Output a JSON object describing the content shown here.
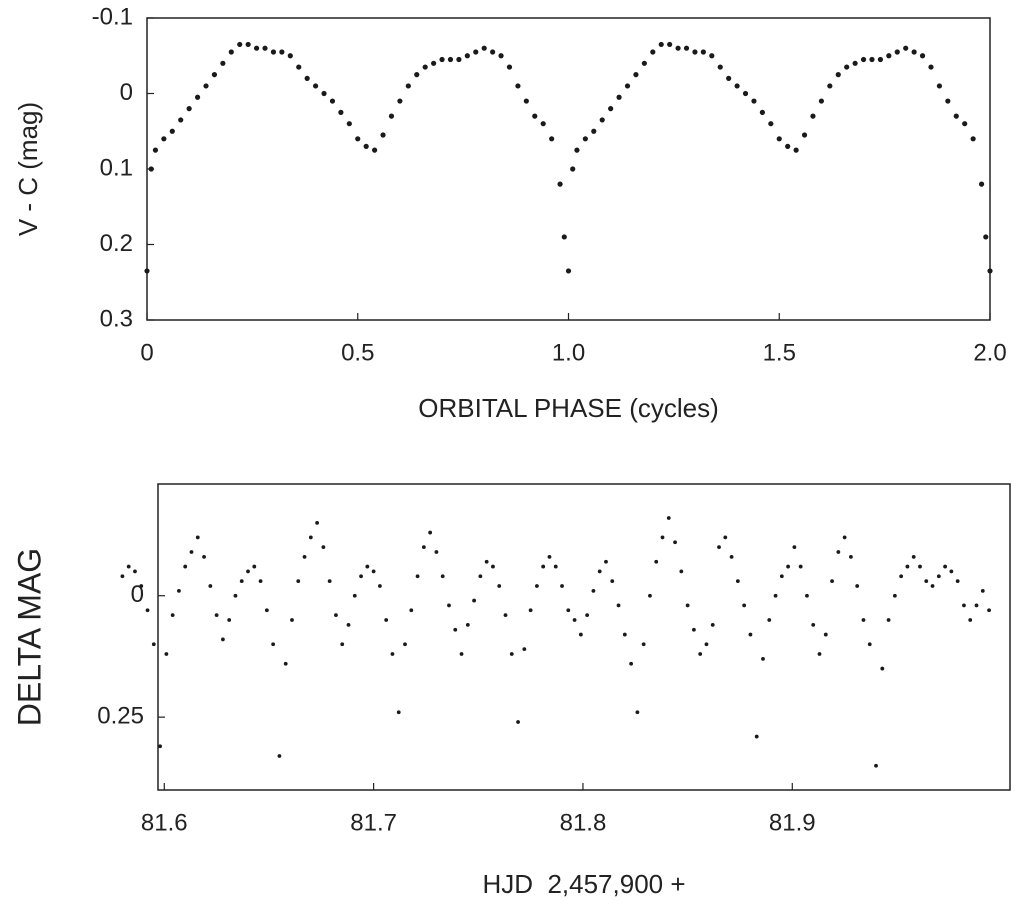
{
  "chart_data": [
    {
      "type": "scatter",
      "xlabel": "ORBITAL PHASE (cycles)",
      "ylabel": "V - C (mag)",
      "color": "#1a1a1a",
      "y_inverted": true,
      "xlim": [
        0,
        2
      ],
      "xticks": [
        0,
        0.5,
        {
          "value": 1,
          "label": "1.0"
        },
        1.5,
        {
          "value": 2,
          "label": "2.0"
        }
      ],
      "ylim": [
        -0.1,
        0.3
      ],
      "yticks": [
        -0.1,
        0,
        0.1,
        0.2,
        0.3
      ],
      "x": [
        0,
        0.01,
        0.02,
        0.04,
        0.06,
        0.08,
        0.1,
        0.12,
        0.14,
        0.16,
        0.18,
        0.2,
        0.22,
        0.24,
        0.26,
        0.28,
        0.3,
        0.32,
        0.34,
        0.36,
        0.38,
        0.4,
        0.42,
        0.44,
        0.46,
        0.48,
        0.5,
        0.52,
        0.54,
        0.56,
        0.58,
        0.6,
        0.62,
        0.64,
        0.66,
        0.68,
        0.7,
        0.72,
        0.74,
        0.76,
        0.78,
        0.8,
        0.82,
        0.84,
        0.86,
        0.88,
        0.9,
        0.92,
        0.94,
        0.96,
        0.98,
        0.99,
        1,
        1.01,
        1.02,
        1.04,
        1.06,
        1.08,
        1.1,
        1.12,
        1.14,
        1.16,
        1.18,
        1.2,
        1.22,
        1.24,
        1.26,
        1.28,
        1.3,
        1.32,
        1.34,
        1.36,
        1.38,
        1.4,
        1.42,
        1.44,
        1.46,
        1.48,
        1.5,
        1.52,
        1.54,
        1.56,
        1.58,
        1.6,
        1.62,
        1.64,
        1.66,
        1.68,
        1.7,
        1.72,
        1.74,
        1.76,
        1.78,
        1.8,
        1.82,
        1.84,
        1.86,
        1.88,
        1.9,
        1.92,
        1.94,
        1.96,
        1.98,
        1.99,
        2
      ],
      "values": [
        0.235,
        0.1,
        0.075,
        0.06,
        0.05,
        0.035,
        0.02,
        0.005,
        -0.01,
        -0.025,
        -0.04,
        -0.055,
        -0.065,
        -0.065,
        -0.06,
        -0.06,
        -0.055,
        -0.055,
        -0.05,
        -0.035,
        -0.02,
        -0.01,
        0,
        0.01,
        0.025,
        0.04,
        0.06,
        0.07,
        0.075,
        0.055,
        0.03,
        0.01,
        -0.01,
        -0.025,
        -0.035,
        -0.04,
        -0.045,
        -0.045,
        -0.045,
        -0.05,
        -0.055,
        -0.06,
        -0.055,
        -0.05,
        -0.035,
        -0.01,
        0.01,
        0.03,
        0.04,
        0.06,
        0.12,
        0.19,
        0.235,
        0.1,
        0.075,
        0.06,
        0.05,
        0.035,
        0.02,
        0.005,
        -0.01,
        -0.025,
        -0.04,
        -0.055,
        -0.065,
        -0.065,
        -0.06,
        -0.06,
        -0.055,
        -0.055,
        -0.05,
        -0.035,
        -0.02,
        -0.01,
        0,
        0.01,
        0.025,
        0.04,
        0.06,
        0.07,
        0.075,
        0.055,
        0.03,
        0.01,
        -0.01,
        -0.025,
        -0.035,
        -0.04,
        -0.045,
        -0.045,
        -0.045,
        -0.05,
        -0.055,
        -0.06,
        -0.055,
        -0.05,
        -0.035,
        -0.01,
        0.01,
        0.03,
        0.04,
        0.06,
        0.12,
        0.19,
        0.235
      ]
    },
    {
      "type": "scatter",
      "xlabel": "HJD  2,457,900 +",
      "ylabel": "DELTA MAG",
      "color": "#1a1a1a",
      "y_inverted": true,
      "xlim": [
        81.597,
        82.004
      ],
      "xticks": [
        81.6,
        81.7,
        81.8,
        81.9
      ],
      "ylim": [
        -0.23,
        0.4
      ],
      "yticks": [
        0,
        0.25
      ],
      "x": [
        81.58,
        81.583,
        81.586,
        81.589,
        81.592,
        81.595,
        81.598,
        81.601,
        81.604,
        81.607,
        81.61,
        81.613,
        81.616,
        81.619,
        81.622,
        81.625,
        81.628,
        81.631,
        81.634,
        81.637,
        81.64,
        81.643,
        81.646,
        81.649,
        81.652,
        81.655,
        81.658,
        81.661,
        81.664,
        81.667,
        81.67,
        81.673,
        81.676,
        81.679,
        81.682,
        81.685,
        81.688,
        81.691,
        81.694,
        81.697,
        81.7,
        81.703,
        81.706,
        81.709,
        81.712,
        81.715,
        81.718,
        81.721,
        81.724,
        81.727,
        81.73,
        81.733,
        81.736,
        81.739,
        81.742,
        81.745,
        81.748,
        81.751,
        81.754,
        81.757,
        81.76,
        81.763,
        81.766,
        81.769,
        81.772,
        81.775,
        81.778,
        81.781,
        81.784,
        81.787,
        81.79,
        81.793,
        81.796,
        81.799,
        81.802,
        81.805,
        81.808,
        81.811,
        81.814,
        81.817,
        81.82,
        81.823,
        81.826,
        81.829,
        81.832,
        81.835,
        81.838,
        81.841,
        81.844,
        81.847,
        81.85,
        81.853,
        81.856,
        81.859,
        81.862,
        81.865,
        81.868,
        81.871,
        81.874,
        81.877,
        81.88,
        81.883,
        81.886,
        81.889,
        81.892,
        81.895,
        81.898,
        81.901,
        81.904,
        81.907,
        81.91,
        81.913,
        81.916,
        81.919,
        81.922,
        81.925,
        81.928,
        81.931,
        81.934,
        81.937,
        81.94,
        81.943,
        81.946,
        81.949,
        81.952,
        81.955,
        81.958,
        81.961,
        81.964,
        81.967,
        81.97,
        81.973,
        81.976,
        81.979,
        81.982,
        81.985,
        81.988,
        81.991,
        81.994
      ],
      "values": [
        -0.04,
        -0.06,
        -0.05,
        -0.02,
        0.03,
        0.1,
        0.31,
        0.12,
        0.04,
        -0.01,
        -0.06,
        -0.09,
        -0.12,
        -0.08,
        -0.02,
        0.04,
        0.09,
        0.05,
        0,
        -0.03,
        -0.05,
        -0.06,
        -0.03,
        0.03,
        0.1,
        0.33,
        0.14,
        0.05,
        -0.03,
        -0.08,
        -0.12,
        -0.15,
        -0.1,
        -0.03,
        0.04,
        0.1,
        0.06,
        0,
        -0.04,
        -0.06,
        -0.05,
        -0.02,
        0.05,
        0.12,
        0.24,
        0.1,
        0.03,
        -0.04,
        -0.1,
        -0.13,
        -0.09,
        -0.04,
        0.02,
        0.07,
        0.12,
        0.06,
        0.01,
        -0.04,
        -0.07,
        -0.06,
        -0.02,
        0.04,
        0.12,
        0.26,
        0.11,
        0.03,
        -0.02,
        -0.06,
        -0.08,
        -0.06,
        -0.02,
        0.03,
        0.05,
        0.08,
        0.04,
        -0.01,
        -0.05,
        -0.07,
        -0.03,
        0.02,
        0.08,
        0.14,
        0.24,
        0.1,
        0,
        -0.07,
        -0.12,
        -0.16,
        -0.11,
        -0.05,
        0.02,
        0.07,
        0.12,
        0.1,
        0.06,
        -0.1,
        -0.12,
        -0.08,
        -0.03,
        0.02,
        0.08,
        0.29,
        0.13,
        0.05,
        0,
        -0.04,
        -0.06,
        -0.1,
        -0.06,
        0,
        0.06,
        0.12,
        0.08,
        -0.03,
        -0.09,
        -0.12,
        -0.08,
        -0.02,
        0.05,
        0.1,
        0.35,
        0.15,
        0.05,
        0,
        -0.04,
        -0.06,
        -0.08,
        -0.06,
        -0.03,
        -0.02,
        -0.04,
        -0.06,
        -0.05,
        -0.03,
        0.02,
        0.05,
        0.02,
        -0.01,
        0.03
      ]
    }
  ]
}
